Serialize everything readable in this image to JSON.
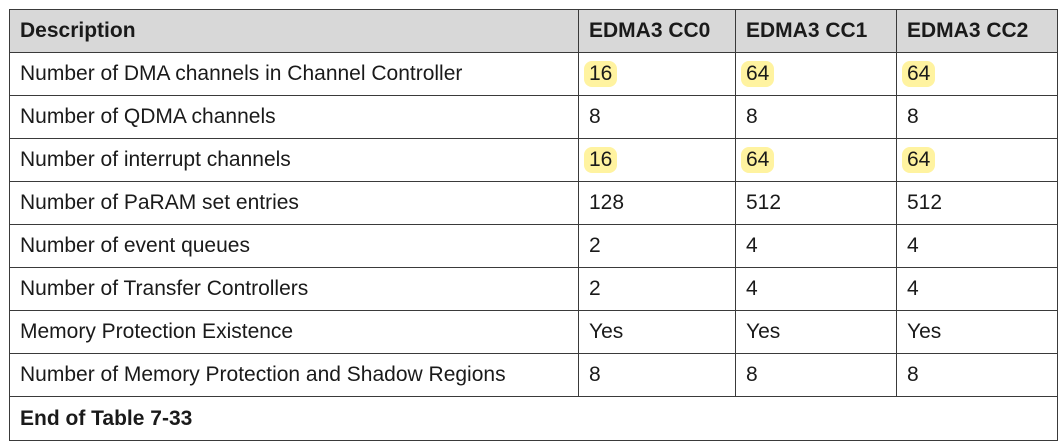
{
  "table": {
    "headers": [
      "Description",
      "EDMA3 CC0",
      "EDMA3 CC1",
      "EDMA3 CC2"
    ],
    "rows": [
      {
        "label": "Number of DMA channels in Channel Controller",
        "cc0": "16",
        "cc1": "64",
        "cc2": "64",
        "highlight": true
      },
      {
        "label": "Number of QDMA channels",
        "cc0": "8",
        "cc1": "8",
        "cc2": "8",
        "highlight": false
      },
      {
        "label": "Number of interrupt channels",
        "cc0": "16",
        "cc1": "64",
        "cc2": "64",
        "highlight": true
      },
      {
        "label": "Number of PaRAM set entries",
        "cc0": "128",
        "cc1": "512",
        "cc2": "512",
        "highlight": false
      },
      {
        "label": "Number of event queues",
        "cc0": "2",
        "cc1": "4",
        "cc2": "4",
        "highlight": false
      },
      {
        "label": "Number of Transfer Controllers",
        "cc0": "2",
        "cc1": "4",
        "cc2": "4",
        "highlight": false
      },
      {
        "label": "Memory Protection Existence",
        "cc0": "Yes",
        "cc1": "Yes",
        "cc2": "Yes",
        "highlight": false
      },
      {
        "label": "Number of Memory Protection and Shadow Regions",
        "cc0": "8",
        "cc1": "8",
        "cc2": "8",
        "highlight": false
      }
    ],
    "footer": "End of Table 7-33"
  },
  "colors": {
    "header_bg": "#d8d8d8",
    "highlight": "#fff3a0",
    "border": "#3a3a3a"
  }
}
